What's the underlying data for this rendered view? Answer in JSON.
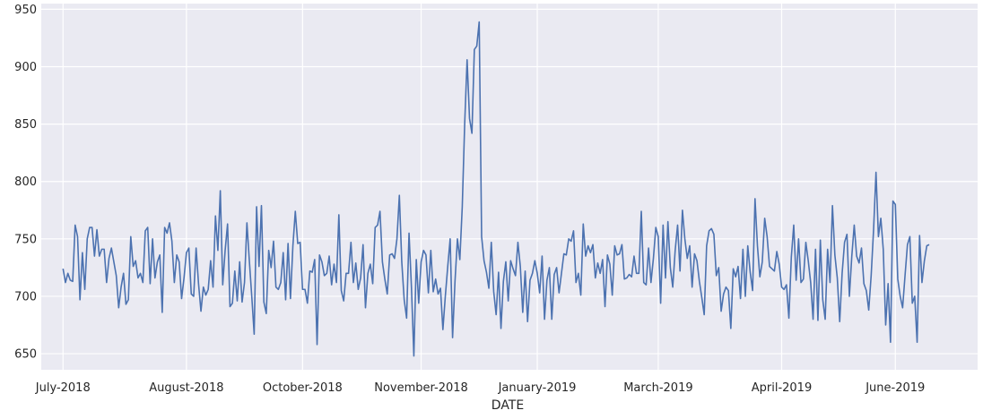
{
  "chart_data": {
    "type": "line",
    "title": "",
    "xlabel": "DATE",
    "ylabel": "",
    "grid": true,
    "background": "#EAEAF2",
    "line_color": "#4C72B0",
    "ylim": [
      636,
      955
    ],
    "xlim": [
      "2018-06-22",
      "2019-07-14"
    ],
    "yticks": [
      650,
      700,
      750,
      800,
      850,
      900,
      950
    ],
    "xticks": [
      {
        "date": "2018-07-01",
        "label": "July-2018"
      },
      {
        "date": "2018-08-21",
        "label": "August-2018"
      },
      {
        "date": "2018-10-08",
        "label": "October-2018"
      },
      {
        "date": "2018-11-26",
        "label": "November-2018"
      },
      {
        "date": "2019-01-13",
        "label": "January-2019"
      },
      {
        "date": "2019-03-04",
        "label": "March-2019"
      },
      {
        "date": "2019-04-24",
        "label": "April-2019"
      },
      {
        "date": "2019-06-10",
        "label": "June-2019"
      }
    ],
    "series": [
      {
        "start_date": "2018-07-01",
        "values": [
          724,
          712,
          720,
          714,
          713,
          762,
          752,
          697,
          738,
          706,
          750,
          760,
          760,
          735,
          758,
          735,
          741,
          741,
          712,
          733,
          742,
          730,
          718,
          690,
          708,
          720,
          693,
          697,
          752,
          726,
          731,
          716,
          720,
          712,
          757,
          760,
          711,
          750,
          716,
          730,
          736,
          686,
          760,
          755,
          764,
          748,
          712,
          736,
          730,
          698,
          716,
          738,
          742,
          702,
          700,
          742,
          711,
          687,
          708,
          701,
          706,
          731,
          708,
          770,
          740,
          792,
          710,
          740,
          763,
          691,
          694,
          722,
          696,
          730,
          695,
          712,
          764,
          731,
          700,
          667,
          778,
          726,
          779,
          695,
          685,
          740,
          725,
          748,
          708,
          706,
          712,
          738,
          697,
          746,
          698,
          744,
          774,
          746,
          747,
          706,
          706,
          694,
          722,
          721,
          732,
          658,
          736,
          730,
          718,
          720,
          735,
          710,
          728,
          712,
          771,
          705,
          696,
          720,
          720,
          747,
          712,
          729,
          706,
          716,
          745,
          690,
          720,
          728,
          711,
          760,
          762,
          774,
          730,
          715,
          702,
          736,
          737,
          733,
          750,
          788,
          730,
          697,
          681,
          755,
          708,
          648,
          732,
          694,
          730,
          740,
          736,
          703,
          740,
          704,
          715,
          702,
          707,
          671,
          700,
          726,
          750,
          664,
          713,
          750,
          732,
          778,
          850,
          906,
          855,
          842,
          915,
          918,
          939,
          752,
          731,
          721,
          707,
          747,
          704,
          684,
          721,
          672,
          713,
          730,
          696,
          731,
          724,
          718,
          747,
          726,
          686,
          722,
          678,
          714,
          720,
          731,
          720,
          703,
          735,
          680,
          714,
          725,
          680,
          719,
          725,
          703,
          720,
          737,
          736,
          750,
          748,
          757,
          712,
          720,
          701,
          763,
          735,
          744,
          738,
          745,
          716,
          729,
          720,
          732,
          691,
          736,
          728,
          701,
          744,
          736,
          737,
          745,
          715,
          716,
          719,
          717,
          735,
          720,
          720,
          774,
          712,
          710,
          742,
          712,
          733,
          760,
          752,
          694,
          762,
          716,
          765,
          725,
          708,
          740,
          762,
          722,
          775,
          750,
          733,
          744,
          708,
          737,
          731,
          713,
          699,
          684,
          744,
          757,
          759,
          754,
          718,
          725,
          687,
          702,
          708,
          705,
          672,
          724,
          717,
          726,
          698,
          741,
          700,
          744,
          721,
          705,
          785,
          744,
          717,
          730,
          768,
          752,
          726,
          724,
          722,
          739,
          728,
          708,
          706,
          710,
          681,
          734,
          762,
          714,
          750,
          712,
          715,
          747,
          731,
          712,
          680,
          741,
          679,
          749,
          697,
          680,
          741,
          712,
          779,
          736,
          716,
          678,
          720,
          747,
          754,
          700,
          735,
          762,
          735,
          729,
          742,
          711,
          705,
          688,
          718,
          758,
          808,
          752,
          768,
          741,
          675,
          711,
          660,
          783,
          780,
          715,
          700,
          690,
          718,
          745,
          752,
          694,
          700,
          660,
          753,
          712,
          731,
          744,
          745
        ]
      }
    ]
  }
}
